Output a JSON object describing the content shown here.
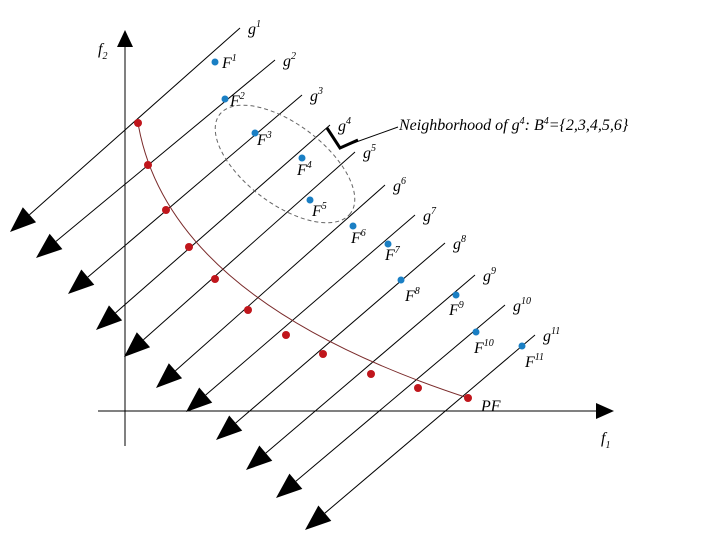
{
  "axes": {
    "x_label": "f",
    "x_sub": "1",
    "y_label": "f",
    "y_sub": "2"
  },
  "front_label": "PF",
  "annotation": {
    "text_main": "Neighborhood of g",
    "text_sup": "4",
    "text_mid": ": B",
    "text_sup2": "4",
    "text_end": "={2,3,4,5,6}"
  },
  "weight_vectors": [
    {
      "base": "g",
      "sup": "1"
    },
    {
      "base": "g",
      "sup": "2"
    },
    {
      "base": "g",
      "sup": "3"
    },
    {
      "base": "g",
      "sup": "4"
    },
    {
      "base": "g",
      "sup": "5"
    },
    {
      "base": "g",
      "sup": "6"
    },
    {
      "base": "g",
      "sup": "7"
    },
    {
      "base": "g",
      "sup": "8"
    },
    {
      "base": "g",
      "sup": "9"
    },
    {
      "base": "g",
      "sup": "10"
    },
    {
      "base": "g",
      "sup": "11"
    }
  ],
  "solutions": [
    {
      "base": "F",
      "sup": "1"
    },
    {
      "base": "F",
      "sup": "2"
    },
    {
      "base": "F",
      "sup": "3"
    },
    {
      "base": "F",
      "sup": "4"
    },
    {
      "base": "F",
      "sup": "5"
    },
    {
      "base": "F",
      "sup": "6"
    },
    {
      "base": "F",
      "sup": "7"
    },
    {
      "base": "F",
      "sup": "8"
    },
    {
      "base": "F",
      "sup": "9"
    },
    {
      "base": "F",
      "sup": "10"
    },
    {
      "base": "F",
      "sup": "11"
    }
  ],
  "colors": {
    "line": "#000000",
    "pareto_point": "#c0161c",
    "solution_point": "#1a7fc4",
    "neighborhood": "#666666"
  }
}
